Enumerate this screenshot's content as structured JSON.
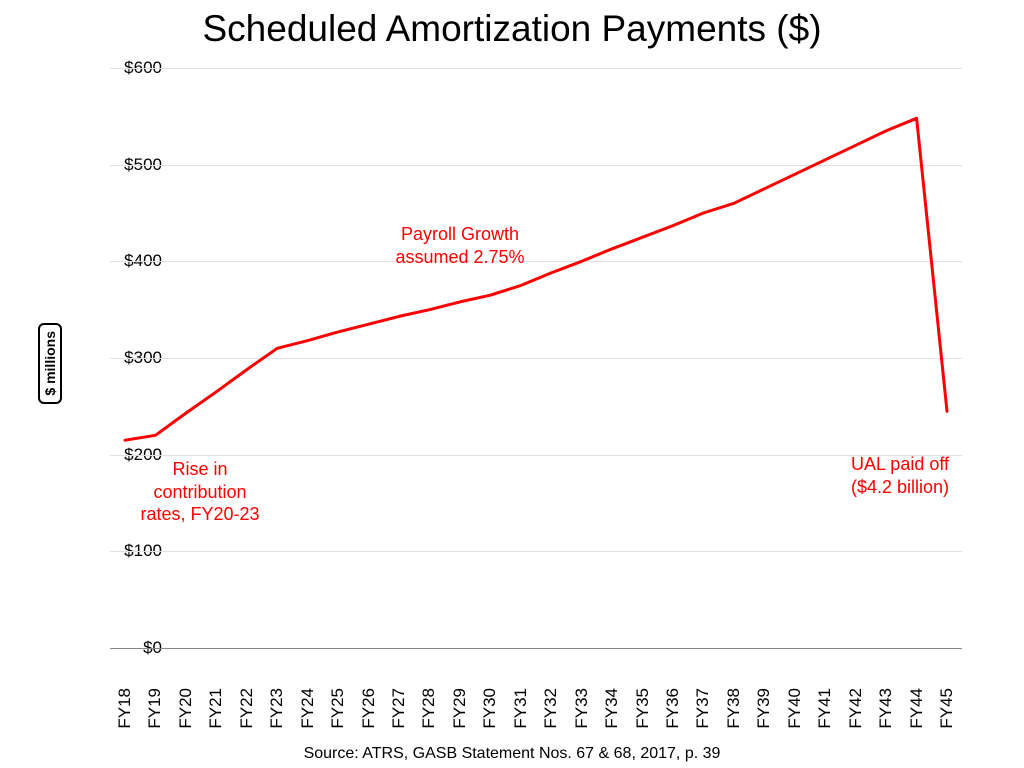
{
  "title": "Scheduled Amortization Payments ($)",
  "source": "Source:  ATRS, GASB Statement Nos. 67 & 68, 2017, p. 39",
  "y_axis": {
    "label": "$ millions",
    "min": 0,
    "max": 600,
    "tick_step": 100,
    "ticks": [
      "$0",
      "$100",
      "$200",
      "$300",
      "$400",
      "$500",
      "$600"
    ]
  },
  "x_axis": {
    "categories": [
      "FY18",
      "FY19",
      "FY20",
      "FY21",
      "FY22",
      "FY23",
      "FY24",
      "FY25",
      "FY26",
      "FY27",
      "FY28",
      "FY29",
      "FY30",
      "FY31",
      "FY32",
      "FY33",
      "FY34",
      "FY35",
      "FY36",
      "FY37",
      "FY38",
      "FY39",
      "FY40",
      "FY41",
      "FY42",
      "FY43",
      "FY44",
      "FY45"
    ]
  },
  "series": {
    "color": "#ff0000",
    "line_width": 3,
    "values": [
      215,
      220,
      243,
      265,
      288,
      310,
      318,
      327,
      335,
      343,
      350,
      358,
      365,
      375,
      388,
      400,
      413,
      425,
      437,
      450,
      460,
      475,
      490,
      505,
      520,
      535,
      548,
      245
    ]
  },
  "annotations": {
    "rise": {
      "lines": [
        "Rise in",
        "contribution",
        "rates, FY20-23"
      ]
    },
    "growth": {
      "lines": [
        "Payroll Growth",
        "assumed 2.75%"
      ]
    },
    "ual": {
      "lines": [
        "UAL paid off",
        "($4.2 billion)"
      ]
    }
  },
  "style": {
    "background_color": "#ffffff",
    "grid_color": "#e0e0e0",
    "title_fontsize": 37,
    "tick_fontsize": 17,
    "annotation_fontsize": 18,
    "annotation_color": "#ff0000"
  }
}
